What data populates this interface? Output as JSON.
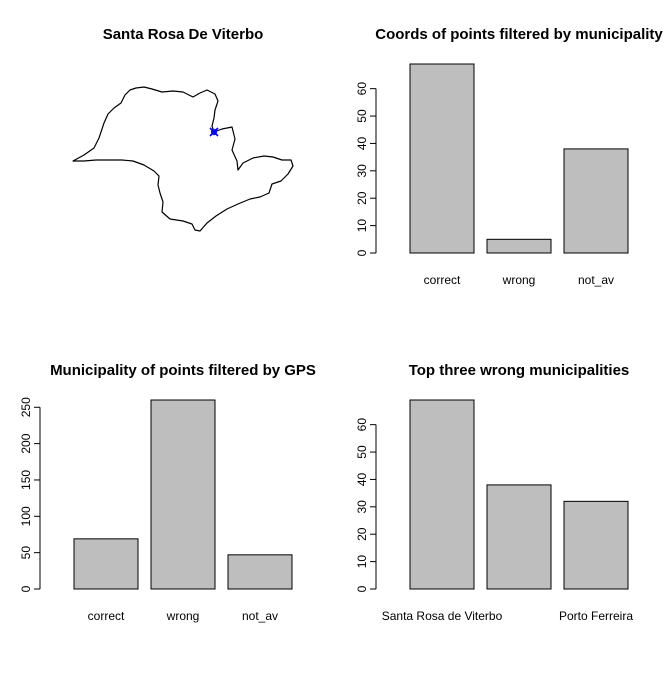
{
  "map_panel": {
    "title": "Santa Rosa De Viterbo"
  },
  "chart_data": [
    {
      "type": "bar",
      "title": "Coords of points filtered by municipality",
      "categories": [
        "correct",
        "wrong",
        "not_av"
      ],
      "values": [
        69,
        5,
        38
      ],
      "ylim": [
        0,
        69
      ],
      "yticks": [
        0,
        10,
        20,
        30,
        40,
        50,
        60
      ],
      "xlabel": "",
      "ylabel": "",
      "bar_color": "#bebebe"
    },
    {
      "type": "bar",
      "title": "Municipality of points filtered by GPS",
      "categories": [
        "correct",
        "wrong",
        "not_av"
      ],
      "values": [
        69,
        260,
        47
      ],
      "ylim": [
        0,
        260
      ],
      "yticks": [
        0,
        50,
        100,
        150,
        200,
        250
      ],
      "xlabel": "",
      "ylabel": "",
      "bar_color": "#bebebe"
    },
    {
      "type": "bar",
      "title": "Top three wrong municipalities",
      "categories": [
        "Santa Rosa de Viterbo",
        "",
        "Porto Ferreira"
      ],
      "values": [
        69,
        38,
        32
      ],
      "ylim": [
        0,
        69
      ],
      "yticks": [
        0,
        10,
        20,
        30,
        40,
        50,
        60
      ],
      "xlabel": "",
      "ylabel": "",
      "bar_color": "#bebebe"
    }
  ]
}
